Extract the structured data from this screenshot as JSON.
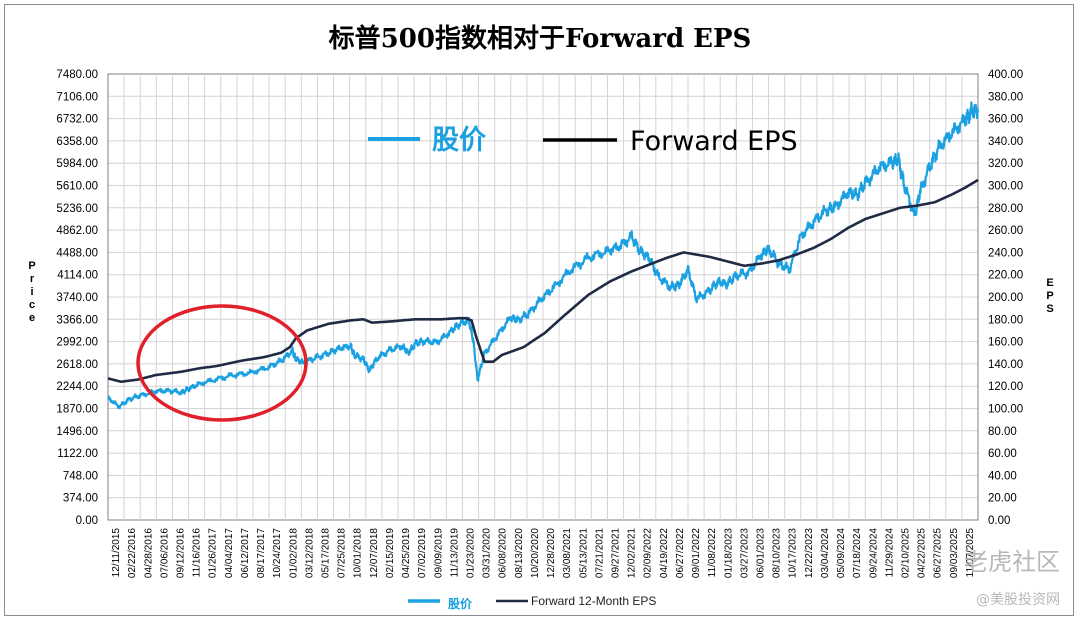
{
  "page": {
    "watermark_main": "老虎社区",
    "watermark_sub": "@美股投资网"
  },
  "chart_data": {
    "type": "line",
    "title": "标普500指数相对于Forward EPS",
    "left_axis_label": "Price",
    "right_axis_label": "EPS",
    "left_ylim": [
      0,
      7480
    ],
    "right_ylim": [
      0,
      400
    ],
    "left_ticks": [
      "7480.00",
      "7106.00",
      "6732.00",
      "6358.00",
      "5984.00",
      "5610.00",
      "5236.00",
      "4862.00",
      "4488.00",
      "4114.00",
      "3740.00",
      "3366.00",
      "2992.00",
      "2618.00",
      "2244.00",
      "1870.00",
      "1496.00",
      "1122.00",
      "748.00",
      "374.00",
      "0.00"
    ],
    "right_ticks": [
      "400.00",
      "380.00",
      "360.00",
      "340.00",
      "320.00",
      "300.00",
      "280.00",
      "260.00",
      "240.00",
      "220.00",
      "200.00",
      "180.00",
      "160.00",
      "140.00",
      "120.00",
      "100.00",
      "80.00",
      "60.00",
      "40.00",
      "20.00",
      "0.00"
    ],
    "x_labels": [
      "12/11/2015",
      "02/22/2016",
      "04/28/2016",
      "07/06/2016",
      "09/12/2016",
      "11/16/2016",
      "01/26/2017",
      "04/04/2017",
      "06/12/2017",
      "08/17/2017",
      "10/24/2017",
      "01/02/2018",
      "03/12/2018",
      "05/17/2018",
      "07/25/2018",
      "10/01/2018",
      "12/07/2018",
      "02/15/2019",
      "04/25/2019",
      "07/02/2019",
      "09/09/2019",
      "11/13/2019",
      "01/23/2020",
      "03/31/2020",
      "06/08/2020",
      "08/13/2020",
      "10/20/2020",
      "12/28/2020",
      "03/08/2021",
      "05/13/2021",
      "07/21/2021",
      "09/27/2021",
      "12/02/2021",
      "02/09/2022",
      "04/19/2022",
      "06/27/2022",
      "09/01/2022",
      "11/08/2022",
      "01/18/2023",
      "03/27/2023",
      "06/01/2023",
      "08/10/2023",
      "10/17/2023",
      "12/22/2023",
      "03/04/2024",
      "05/09/2024",
      "07/18/2024",
      "09/24/2024",
      "11/29/2024",
      "02/10/2025",
      "04/22/2025",
      "06/27/2025",
      "09/03/2025",
      "11/07/2025"
    ],
    "grid": true,
    "legend_placement": "top-center and bottom-center",
    "legend_top": {
      "price": "股价",
      "eps": "Forward EPS"
    },
    "legend_bottom": {
      "price": "股价",
      "eps": "Forward 12-Month EPS"
    },
    "colors": {
      "price": "#1ba1e2",
      "eps": "#1f2a44",
      "annotation": "#e0202a",
      "grid": "#d4d4d4"
    },
    "annotation": "red ellipse around 2016–2017 segment",
    "series": [
      {
        "name": "股价",
        "axis": "left",
        "x": [
          2015.95,
          2016.08,
          2016.2,
          2016.33,
          2016.5,
          2016.65,
          2016.8,
          2016.88,
          2017.0,
          2017.2,
          2017.4,
          2017.6,
          2017.8,
          2017.95,
          2018.08,
          2018.12,
          2018.2,
          2018.35,
          2018.5,
          2018.62,
          2018.75,
          2018.8,
          2018.9,
          2018.97,
          2019.05,
          2019.2,
          2019.35,
          2019.42,
          2019.5,
          2019.6,
          2019.75,
          2019.9,
          2020.0,
          2020.12,
          2020.17,
          2020.22,
          2020.3,
          2020.45,
          2020.6,
          2020.68,
          2020.8,
          2020.95,
          2021.1,
          2021.3,
          2021.5,
          2021.7,
          2021.85,
          2022.0,
          2022.1,
          2022.2,
          2022.3,
          2022.45,
          2022.55,
          2022.65,
          2022.75,
          2022.9,
          2023.0,
          2023.1,
          2023.2,
          2023.35,
          2023.5,
          2023.58,
          2023.7,
          2023.82,
          2023.95,
          2024.1,
          2024.25,
          2024.35,
          2024.5,
          2024.6,
          2024.7,
          2024.85,
          2025.0,
          2025.08,
          2025.15,
          2025.27,
          2025.33,
          2025.45,
          2025.55,
          2025.7,
          2025.85,
          2025.92,
          2026.0
        ],
        "y": [
          2050,
          1900,
          2030,
          2090,
          2160,
          2170,
          2140,
          2200,
          2280,
          2360,
          2430,
          2470,
          2560,
          2670,
          2840,
          2700,
          2640,
          2720,
          2800,
          2880,
          2920,
          2760,
          2700,
          2500,
          2700,
          2850,
          2920,
          2800,
          2960,
          3000,
          2980,
          3150,
          3280,
          3350,
          3000,
          2350,
          2800,
          3100,
          3400,
          3350,
          3450,
          3700,
          3900,
          4200,
          4400,
          4500,
          4580,
          4750,
          4500,
          4400,
          4100,
          3900,
          3950,
          4200,
          3700,
          3850,
          4000,
          3950,
          4100,
          4150,
          4450,
          4550,
          4300,
          4200,
          4750,
          5000,
          5200,
          5250,
          5500,
          5450,
          5650,
          5900,
          6000,
          6050,
          5600,
          5100,
          5500,
          5950,
          6250,
          6500,
          6700,
          6850,
          6880
        ]
      },
      {
        "name": "Forward 12-Month EPS",
        "axis": "right",
        "x": [
          2015.95,
          2016.1,
          2016.3,
          2016.5,
          2016.8,
          2017.0,
          2017.2,
          2017.5,
          2017.75,
          2017.95,
          2018.05,
          2018.12,
          2018.25,
          2018.5,
          2018.75,
          2018.9,
          2019.0,
          2019.2,
          2019.5,
          2019.8,
          2020.0,
          2020.08,
          2020.15,
          2020.2,
          2020.3,
          2020.4,
          2020.5,
          2020.75,
          2021.0,
          2021.2,
          2021.5,
          2021.75,
          2022.0,
          2022.2,
          2022.4,
          2022.6,
          2022.75,
          2022.9,
          2023.1,
          2023.3,
          2023.5,
          2023.7,
          2023.9,
          2024.1,
          2024.3,
          2024.5,
          2024.7,
          2024.9,
          2025.1,
          2025.3,
          2025.5,
          2025.7,
          2025.85,
          2026.0
        ],
        "y": [
          127,
          124,
          126,
          130,
          133,
          136,
          138,
          143,
          146,
          150,
          155,
          163,
          170,
          176,
          179,
          180,
          177,
          178,
          180,
          180,
          181,
          181,
          179,
          165,
          142,
          142,
          148,
          155,
          168,
          182,
          202,
          214,
          223,
          229,
          235,
          240,
          238,
          236,
          232,
          228,
          230,
          233,
          238,
          244,
          252,
          262,
          270,
          275,
          280,
          282,
          285,
          292,
          298,
          305
        ]
      }
    ]
  }
}
